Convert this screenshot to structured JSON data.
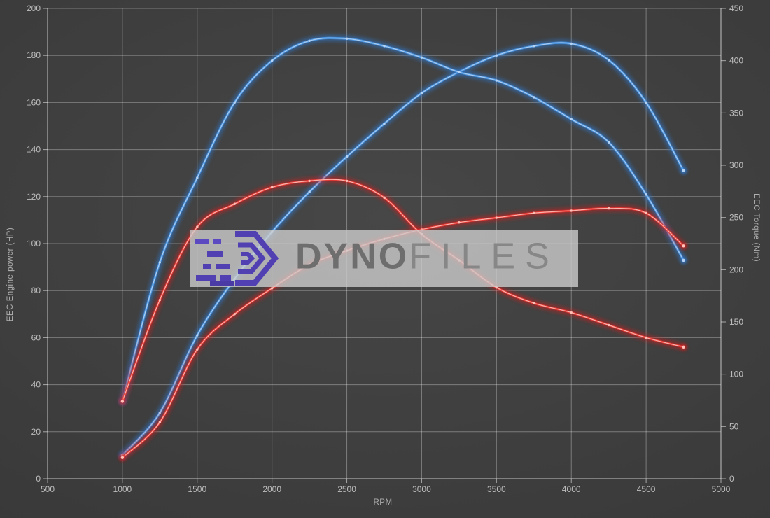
{
  "watermark": {
    "brand_bold": "DYNO",
    "brand_light": "FILES"
  },
  "colors": {
    "background": "#3d3d3d",
    "grid": "#ffffff",
    "tick_text": "#bdbdbd",
    "blue_line": "#4b95e0",
    "blue_glow": "#2e7bd6",
    "blue_core": "#b5d4f5",
    "red_line": "#e53935",
    "red_glow": "#d41f1f",
    "red_core": "#ffc1b8",
    "watermark_box": "#cccccc",
    "logo_purple": "#5040b2"
  },
  "chart_data": {
    "type": "line",
    "title": "",
    "xlabel": "RPM",
    "ylabel_left": "EEC Engine power (HP)",
    "ylabel_right": "EEC Torque (Nm)",
    "x_range": [
      500,
      5000
    ],
    "y_left_range": [
      0,
      200
    ],
    "y_right_range": [
      0,
      450
    ],
    "x_ticks": [
      500,
      1000,
      1500,
      2000,
      2500,
      3000,
      3500,
      4000,
      4500,
      5000
    ],
    "y_left_ticks": [
      0,
      20,
      40,
      60,
      80,
      100,
      120,
      140,
      160,
      180,
      200
    ],
    "y_right_ticks": [
      0,
      50,
      100,
      150,
      200,
      250,
      300,
      350,
      400,
      450
    ],
    "grid": "left-axis-horizontal-and-vertical",
    "legend": "none",
    "x": [
      1000,
      1250,
      1500,
      1750,
      2000,
      2250,
      2500,
      2750,
      3000,
      3250,
      3500,
      3750,
      4000,
      4250,
      4500,
      4750
    ],
    "series": [
      {
        "name": "blue-power-hp",
        "axis": "left",
        "color": "#4b95e0",
        "values": [
          10,
          28,
          61,
          85,
          105,
          122,
          137,
          151,
          164,
          173,
          180,
          184,
          185,
          178,
          160,
          131
        ]
      },
      {
        "name": "blue-torque-nm",
        "axis": "right",
        "color": "#4b95e0",
        "values": [
          74,
          207,
          288,
          360,
          400,
          419,
          421,
          414,
          403,
          389,
          381,
          365,
          344,
          322,
          272,
          209
        ]
      },
      {
        "name": "red-power-hp",
        "axis": "left",
        "color": "#e53935",
        "values": [
          9,
          24,
          55,
          70,
          81,
          91,
          97,
          102,
          106,
          109,
          111,
          113,
          114,
          115,
          113,
          99
        ]
      },
      {
        "name": "red-torque-nm",
        "axis": "right",
        "color": "#e53935",
        "values": [
          74,
          171,
          241,
          263,
          279,
          285,
          285,
          269,
          234,
          209,
          183,
          168,
          159,
          147,
          135,
          126
        ]
      }
    ]
  }
}
